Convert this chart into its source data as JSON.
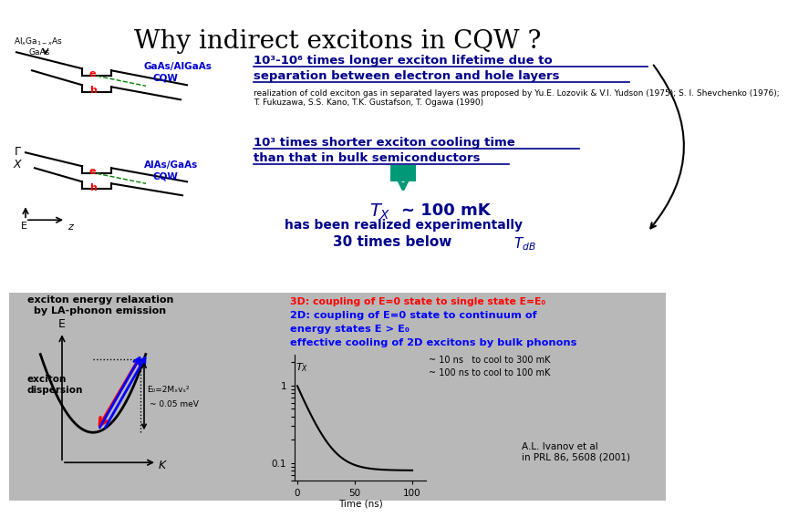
{
  "title": "Why indirect excitons in CQW ?",
  "title_fontsize": 20,
  "title_color": "#000000",
  "bg_color": "#ffffff",
  "bottom_bg_color": "#b8b8b8",
  "line1_text": "10³-10⁶ times longer exciton lifetime due to",
  "line2_text": "separation between electron and hole layers",
  "line3_text": "realization of cold exciton gas in separated layers was proposed by Yu.E. Lozovik & V.I. Yudson (1975); S. I. Shevchenko (1976);\nT. Fukuzawa, S.S. Kano, T.K. Gustafson, T. Ogawa (1990)",
  "line4_text": "10³ times shorter exciton cooling time",
  "line5_text": "than that in bulk semiconductors",
  "realized_text": "has been realized experimentally",
  "below_text": "30 times below ",
  "plot_note1": "~ 10 ns   to cool to 300 mK",
  "plot_note2": "~ 100 ns to cool to 100 mK",
  "ref_text": "A.L. Ivanov et al\nin PRL 86, 5608 (2001)",
  "time_label": "Time (ns)",
  "left_panel_title1": "exciton energy relaxation",
  "left_panel_title2": "by LA-phonon emission",
  "disp_label": "exciton\ndispersion",
  "e0_label1": "E₀=2Mₓvₛ²",
  "e0_label2": "~ 0.05 meV",
  "rp1": "3D: coupling of E=0 state to single state E=E₀",
  "rp2": "2D: coupling of E=0 state to continuum of",
  "rp3": "energy states E > E₀",
  "rp4": "effective cooling of 2D excitons by bulk phonons"
}
